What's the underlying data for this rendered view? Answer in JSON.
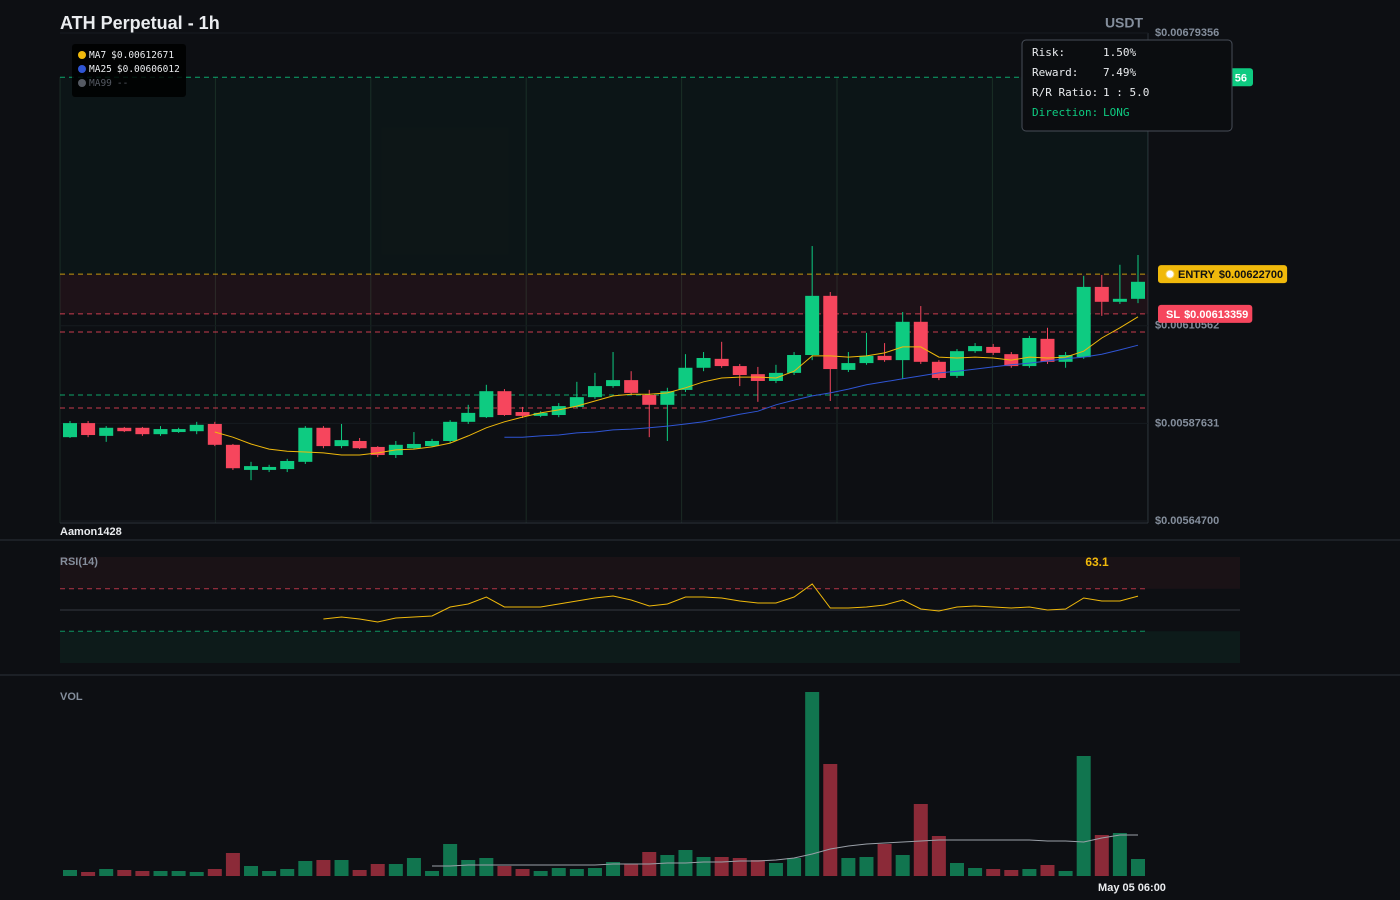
{
  "chart_data": [
    {
      "type": "candlestick",
      "title": "ATH Perpetual - 1h",
      "unit": "USDT",
      "watermark": "Aamon1428",
      "categories": [
        null,
        null,
        null,
        null,
        null,
        null,
        null,
        null,
        null,
        null,
        null,
        null,
        null,
        null,
        null,
        null,
        null,
        null,
        null,
        null,
        null,
        null,
        null,
        null,
        null,
        null,
        null,
        null,
        null,
        null,
        null,
        null,
        null,
        null,
        null,
        null,
        null,
        null,
        null,
        null,
        null,
        null,
        null,
        null,
        null,
        null,
        null,
        null,
        null,
        null,
        null,
        null,
        null,
        null,
        null,
        null,
        null,
        null,
        null,
        "May 05 06:00"
      ],
      "open": [
        0.005844,
        0.005877,
        0.005847,
        0.005866,
        0.005866,
        0.005851,
        0.005856,
        0.005858,
        0.005875,
        0.005826,
        0.005767,
        0.005767,
        0.005769,
        0.005786,
        0.005866,
        0.005823,
        0.005835,
        0.005821,
        0.005802,
        0.005818,
        0.005823,
        0.005835,
        0.00588,
        0.005891,
        0.005952,
        0.005903,
        0.005894,
        0.005896,
        0.005915,
        0.005938,
        0.005964,
        0.005978,
        0.005943,
        0.00592,
        0.005955,
        0.006007,
        0.006028,
        0.006011,
        0.005992,
        0.005976,
        0.005995,
        0.006037,
        0.006176,
        0.006002,
        0.006018,
        0.006035,
        0.006025,
        0.006115,
        0.006021,
        0.005988,
        0.006046,
        0.006056,
        0.006039,
        0.006011,
        0.006075,
        0.006021,
        0.006032,
        0.006197,
        0.006162,
        0.006169
      ],
      "high": [
        0.005882,
        0.005882,
        0.00587,
        0.005868,
        0.005868,
        0.00587,
        0.005866,
        0.00588,
        0.00588,
        0.005828,
        0.005786,
        0.005779,
        0.005793,
        0.00587,
        0.00587,
        0.005875,
        0.005842,
        0.005823,
        0.005835,
        0.005856,
        0.00584,
        0.005884,
        0.00592,
        0.005967,
        0.005957,
        0.005915,
        0.005905,
        0.005924,
        0.005974,
        0.005995,
        0.006044,
        0.005999,
        0.005955,
        0.00596,
        0.006039,
        0.006044,
        0.006068,
        0.006016,
        0.006009,
        0.006014,
        0.006044,
        0.006293,
        0.006185,
        0.006044,
        0.006089,
        0.006065,
        0.006138,
        0.006152,
        0.006025,
        0.006051,
        0.006065,
        0.006063,
        0.006044,
        0.006082,
        0.006101,
        0.006044,
        0.006223,
        0.006225,
        0.006249,
        0.006272
      ],
      "low": [
        0.005842,
        0.005844,
        0.005833,
        0.005856,
        0.005847,
        0.005847,
        0.005854,
        0.005851,
        0.005823,
        0.005767,
        0.005743,
        0.005762,
        0.005762,
        0.005781,
        0.005818,
        0.005818,
        0.005816,
        0.005797,
        0.005795,
        0.005816,
        0.005821,
        0.00583,
        0.005875,
        0.005889,
        0.005894,
        0.005889,
        0.005891,
        0.005891,
        0.005912,
        0.005934,
        0.00596,
        0.005943,
        0.005844,
        0.005835,
        0.00595,
        0.005999,
        0.006007,
        0.005964,
        0.005927,
        0.005971,
        0.00599,
        0.006025,
        0.005929,
        0.005997,
        0.006014,
        0.006021,
        0.005981,
        0.006016,
        0.005978,
        0.005983,
        0.006042,
        0.006037,
        0.006007,
        0.006007,
        0.006016,
        0.006007,
        0.006028,
        0.006129,
        0.006157,
        0.006159
      ],
      "close": [
        0.005877,
        0.005849,
        0.005866,
        0.005858,
        0.005851,
        0.005863,
        0.005863,
        0.005873,
        0.005826,
        0.005771,
        0.005776,
        0.005774,
        0.005788,
        0.005866,
        0.005823,
        0.005837,
        0.005818,
        0.005802,
        0.005826,
        0.005828,
        0.005835,
        0.00588,
        0.005901,
        0.005952,
        0.005896,
        0.005894,
        0.005901,
        0.005917,
        0.005938,
        0.005964,
        0.005978,
        0.005948,
        0.00592,
        0.005952,
        0.006007,
        0.00603,
        0.006011,
        0.00599,
        0.005976,
        0.005995,
        0.006037,
        0.006176,
        0.006004,
        0.006018,
        0.006035,
        0.006025,
        0.006115,
        0.006021,
        0.005983,
        0.006046,
        0.006058,
        0.006042,
        0.006011,
        0.006077,
        0.006021,
        0.006037,
        0.006197,
        0.006162,
        0.006169,
        0.006209
      ],
      "colors": {
        "up": "#0ecb81",
        "down": "#f6465d"
      },
      "ylim": [
        0.005647,
        0.00679356
      ],
      "yticks": [
        {
          "value": 0.005647,
          "label": "$0.00564700"
        },
        {
          "value": 0.00587631,
          "label": "$0.00587631"
        },
        {
          "value": 0.00610562,
          "label": "$0.00610562"
        },
        {
          "value": 0.00679356,
          "label": "$0.00679356"
        }
      ],
      "series": [
        {
          "name": "MA7",
          "legend_label": "$0.00612671",
          "color": "#f0b90b",
          "values": [
            null,
            null,
            null,
            null,
            null,
            null,
            null,
            null,
            0.005856,
            0.005844,
            0.005828,
            0.005816,
            0.005811,
            0.005809,
            0.005807,
            0.005802,
            0.005802,
            0.005807,
            0.005814,
            0.005816,
            0.005821,
            0.00583,
            0.005847,
            0.005866,
            0.00588,
            0.005891,
            0.005901,
            0.005908,
            0.005917,
            0.005929,
            0.005941,
            0.005945,
            0.005945,
            0.005948,
            0.00596,
            0.005974,
            0.005983,
            0.005985,
            0.005985,
            0.005983,
            0.005999,
            0.006035,
            0.006035,
            0.006032,
            0.006035,
            0.006042,
            0.006056,
            0.006056,
            0.006032,
            0.00603,
            0.006032,
            0.00603,
            0.006025,
            0.006032,
            0.00603,
            0.006032,
            0.006046,
            0.006077,
            0.006101,
            0.00612671
          ]
        },
        {
          "name": "MA25",
          "legend_label": "$0.00606012",
          "color": "#2f55d4",
          "values": [
            null,
            null,
            null,
            null,
            null,
            null,
            null,
            null,
            null,
            null,
            null,
            null,
            null,
            null,
            null,
            null,
            null,
            null,
            null,
            null,
            null,
            null,
            null,
            null,
            0.005844,
            0.005844,
            0.005847,
            0.005849,
            0.005854,
            0.005856,
            0.005861,
            0.005863,
            0.005866,
            0.00587,
            0.005875,
            0.00588,
            0.005889,
            0.005898,
            0.005905,
            0.00592,
            0.005931,
            0.005941,
            0.005948,
            0.005957,
            0.005967,
            0.005974,
            0.005981,
            0.005988,
            0.005995,
            0.005999,
            0.006004,
            0.006009,
            0.006014,
            0.006018,
            0.006023,
            0.006028,
            0.006032,
            0.006039,
            0.006049,
            0.00606012
          ]
        },
        {
          "name": "MA99",
          "legend_label": "--",
          "color": "#555a63"
        }
      ],
      "levels": [
        {
          "value": 0.0066895,
          "label": "56",
          "color": "#0ecb81"
        },
        {
          "name": "ENTRY",
          "value": 0.006227,
          "label": "$0.00622700",
          "color": "#f0b90b"
        },
        {
          "name": "SL",
          "value": 0.00613359,
          "label": "$0.00613359",
          "color": "#f6465d"
        },
        {
          "value": 0.006091,
          "color": "#f6465d"
        },
        {
          "value": 0.005943,
          "color": "#0ecb81"
        },
        {
          "value": 0.0059125,
          "color": "#f6465d"
        }
      ]
    },
    {
      "type": "line",
      "title": "RSI(14)",
      "current": 63.1,
      "color": "#f0b90b",
      "ylim": [
        0,
        100
      ],
      "levels": [
        70,
        50,
        30
      ],
      "values": [
        null,
        null,
        null,
        null,
        null,
        null,
        null,
        null,
        null,
        null,
        null,
        null,
        null,
        null,
        41.5,
        43.4,
        41.5,
        38.7,
        42.5,
        43.4,
        44.3,
        52.8,
        55.7,
        62.3,
        52.8,
        52.8,
        52.8,
        55.7,
        58.5,
        61.3,
        63.2,
        59.4,
        53.8,
        55.7,
        62.3,
        62.3,
        61.3,
        58.5,
        56.6,
        56.6,
        62.3,
        74.5,
        51.9,
        51.9,
        52.8,
        54.7,
        59.4,
        50.9,
        49.1,
        52.8,
        53.8,
        52.8,
        51.9,
        52.8,
        50.0,
        50.9,
        61.3,
        58.5,
        58.5,
        63.1
      ]
    },
    {
      "type": "bar",
      "title": "VOL",
      "colors": {
        "up": "#11754f",
        "down": "#8b2a38"
      },
      "ma_color": "#9aa0a8",
      "ylim": [
        0,
        184
      ],
      "values": [
        6,
        4,
        7,
        6,
        5,
        5,
        5,
        4,
        7,
        23,
        10,
        5,
        7,
        15,
        16,
        16,
        6,
        12,
        12,
        18,
        5,
        32,
        16,
        18,
        10,
        7,
        5,
        8,
        7,
        8,
        14,
        12,
        24,
        21,
        26,
        19,
        19,
        18,
        16,
        13,
        18,
        184,
        112,
        18,
        19,
        32,
        21,
        72,
        40,
        13,
        8,
        7,
        6,
        7,
        11,
        5,
        120,
        41,
        43,
        17
      ],
      "ma": [
        null,
        null,
        null,
        null,
        null,
        null,
        null,
        null,
        null,
        null,
        null,
        null,
        null,
        null,
        null,
        null,
        null,
        null,
        null,
        null,
        10,
        10,
        11,
        11,
        11,
        11,
        11,
        11,
        11,
        11,
        12,
        12,
        12,
        13,
        13,
        14,
        14,
        15,
        15,
        16,
        18,
        22,
        27,
        30,
        32,
        33,
        34,
        35,
        36,
        36,
        36,
        36,
        36,
        36,
        35,
        35,
        34,
        38,
        41,
        41
      ]
    }
  ],
  "info_box": [
    {
      "label": "Risk:",
      "value": "1.50%"
    },
    {
      "label": "Reward:",
      "value": "7.49%"
    },
    {
      "label": "R/R Ratio:",
      "value": "1 : 5.0"
    },
    {
      "label": "Direction:",
      "value": "LONG"
    }
  ]
}
